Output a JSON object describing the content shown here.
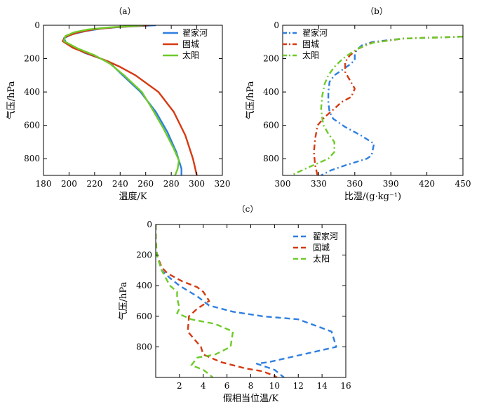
{
  "figure": {
    "panels": [
      "（a）",
      "（b）",
      "（c）"
    ]
  },
  "colors": {
    "翟家河": "#2f7fe0",
    "固城": "#d63a12",
    "太阳": "#6ecb2a"
  },
  "chart_data": [
    {
      "type": "line",
      "panel_label": "（a）",
      "xlabel": "温度/K",
      "ylabel": "气压/hPa",
      "xlim": [
        180,
        320
      ],
      "ylim": [
        900,
        0
      ],
      "y_inverted": true,
      "xticks": [
        180,
        200,
        220,
        240,
        260,
        280,
        300,
        320
      ],
      "yticks": [
        0,
        200,
        400,
        600,
        800
      ],
      "legend": "top-right",
      "line_style": "solid",
      "series": [
        {
          "name": "翟家河",
          "points": [
            [
              268,
              0
            ],
            [
              240,
              10
            ],
            [
              225,
              20
            ],
            [
              213,
              35
            ],
            [
              202,
              55
            ],
            [
              196,
              78
            ],
            [
              198,
              110
            ],
            [
              212,
              165
            ],
            [
              225,
              200
            ],
            [
              232,
              225
            ],
            [
              242,
              300
            ],
            [
              256,
              400
            ],
            [
              268,
              520
            ],
            [
              277,
              640
            ],
            [
              284,
              760
            ],
            [
              288,
              860
            ],
            [
              288,
              900
            ]
          ]
        },
        {
          "name": "固城",
          "points": [
            [
              262,
              0
            ],
            [
              235,
              12
            ],
            [
              219,
              25
            ],
            [
              206,
              45
            ],
            [
              197,
              70
            ],
            [
              195,
              95
            ],
            [
              203,
              135
            ],
            [
              218,
              180
            ],
            [
              230,
              215
            ],
            [
              240,
              250
            ],
            [
              252,
              300
            ],
            [
              270,
              400
            ],
            [
              282,
              520
            ],
            [
              291,
              660
            ],
            [
              297,
              800
            ],
            [
              300,
              900
            ]
          ]
        },
        {
          "name": "太阳",
          "points": [
            [
              258,
              0
            ],
            [
              232,
              12
            ],
            [
              215,
              25
            ],
            [
              204,
              42
            ],
            [
              197,
              65
            ],
            [
              196,
              95
            ],
            [
              207,
              140
            ],
            [
              220,
              180
            ],
            [
              232,
              230
            ],
            [
              243,
              300
            ],
            [
              257,
              400
            ],
            [
              265,
              500
            ],
            [
              274,
              620
            ],
            [
              282,
              740
            ],
            [
              286,
              810
            ],
            [
              285,
              860
            ],
            [
              283,
              900
            ]
          ]
        }
      ]
    },
    {
      "type": "line",
      "panel_label": "（b）",
      "xlabel": "比湿/(g·kg⁻¹)",
      "ylabel": "气压/hPa",
      "xlim": [
        300,
        450
      ],
      "ylim": [
        900,
        0
      ],
      "y_inverted": true,
      "xticks": [
        300,
        330,
        360,
        390,
        420,
        450
      ],
      "yticks": [
        0,
        200,
        400,
        600,
        800
      ],
      "legend": "top-left",
      "line_style": "dashdot",
      "series": [
        {
          "name": "翟家河",
          "points": [
            [
              450,
              68
            ],
            [
              400,
              80
            ],
            [
              375,
              100
            ],
            [
              366,
              120
            ],
            [
              362,
              145
            ],
            [
              360,
              170
            ],
            [
              360,
              210
            ],
            [
              355,
              240
            ],
            [
              349,
              270
            ],
            [
              343,
              300
            ],
            [
              339,
              340
            ],
            [
              338,
              400
            ],
            [
              338,
              460
            ],
            [
              339,
              520
            ],
            [
              342,
              560
            ],
            [
              352,
              610
            ],
            [
              365,
              660
            ],
            [
              376,
              710
            ],
            [
              374,
              780
            ],
            [
              370,
              800
            ],
            [
              352,
              840
            ],
            [
              340,
              870
            ],
            [
              332,
              900
            ]
          ]
        },
        {
          "name": "固城",
          "points": [
            [
              450,
              68
            ],
            [
              400,
              80
            ],
            [
              374,
              105
            ],
            [
              363,
              140
            ],
            [
              356,
              180
            ],
            [
              352,
              220
            ],
            [
              352,
              280
            ],
            [
              356,
              330
            ],
            [
              360,
              380
            ],
            [
              357,
              430
            ],
            [
              349,
              460
            ],
            [
              343,
              500
            ],
            [
              335,
              550
            ],
            [
              329,
              600
            ],
            [
              327,
              680
            ],
            [
              326,
              760
            ],
            [
              327,
              840
            ],
            [
              329,
              900
            ]
          ]
        },
        {
          "name": "太阳",
          "points": [
            [
              450,
              68
            ],
            [
              400,
              80
            ],
            [
              375,
              105
            ],
            [
              364,
              135
            ],
            [
              357,
              165
            ],
            [
              350,
              200
            ],
            [
              343,
              250
            ],
            [
              338,
              300
            ],
            [
              335,
              350
            ],
            [
              333,
              420
            ],
            [
              332,
              500
            ],
            [
              333,
              560
            ],
            [
              334,
              600
            ],
            [
              338,
              650
            ],
            [
              343,
              700
            ],
            [
              343,
              760
            ],
            [
              338,
              800
            ],
            [
              322,
              850
            ],
            [
              313,
              880
            ],
            [
              307,
              900
            ]
          ]
        }
      ]
    },
    {
      "type": "line",
      "panel_label": "（c）",
      "xlabel": "假相当位温/K",
      "ylabel": "气压/hPa",
      "xlim": [
        0,
        16
      ],
      "ylim": [
        1000,
        0
      ],
      "y_inverted": true,
      "xticks": [
        2,
        4,
        6,
        8,
        10,
        12,
        14,
        16
      ],
      "yticks": [
        0,
        200,
        400,
        600,
        800
      ],
      "legend": "top-right",
      "line_style": "dashed",
      "series": [
        {
          "name": "翟家河",
          "points": [
            [
              0,
              0
            ],
            [
              0,
              100
            ],
            [
              0.1,
              200
            ],
            [
              0.5,
              300
            ],
            [
              1.2,
              350
            ],
            [
              2,
              400
            ],
            [
              3.5,
              470
            ],
            [
              4.5,
              530
            ],
            [
              6.5,
              570
            ],
            [
              9,
              600
            ],
            [
              12,
              620
            ],
            [
              14.8,
              700
            ],
            [
              15.2,
              800
            ],
            [
              9.5,
              900
            ],
            [
              8.5,
              910
            ],
            [
              10,
              950
            ],
            [
              10.8,
              1000
            ]
          ]
        },
        {
          "name": "固城",
          "points": [
            [
              0,
              0
            ],
            [
              0,
              100
            ],
            [
              0.1,
              200
            ],
            [
              0.5,
              280
            ],
            [
              1,
              320
            ],
            [
              2.2,
              370
            ],
            [
              3.5,
              410
            ],
            [
              4,
              440
            ],
            [
              4.5,
              500
            ],
            [
              3.5,
              550
            ],
            [
              2.8,
              600
            ],
            [
              2.7,
              700
            ],
            [
              3.8,
              800
            ],
            [
              4,
              850
            ],
            [
              5.5,
              900
            ],
            [
              7.5,
              940
            ],
            [
              9,
              960
            ],
            [
              10,
              990
            ],
            [
              10.2,
              1000
            ]
          ]
        },
        {
          "name": "太阳",
          "points": [
            [
              0,
              0
            ],
            [
              0,
              100
            ],
            [
              0.1,
              200
            ],
            [
              0.5,
              300
            ],
            [
              1.2,
              400
            ],
            [
              1.8,
              440
            ],
            [
              1.8,
              480
            ],
            [
              2,
              550
            ],
            [
              1.8,
              580
            ],
            [
              3,
              620
            ],
            [
              5,
              650
            ],
            [
              6.5,
              700
            ],
            [
              6.3,
              800
            ],
            [
              5,
              850
            ],
            [
              3.5,
              870
            ],
            [
              3,
              920
            ],
            [
              4,
              950
            ],
            [
              4.5,
              980
            ],
            [
              4.8,
              1000
            ]
          ]
        }
      ]
    }
  ]
}
